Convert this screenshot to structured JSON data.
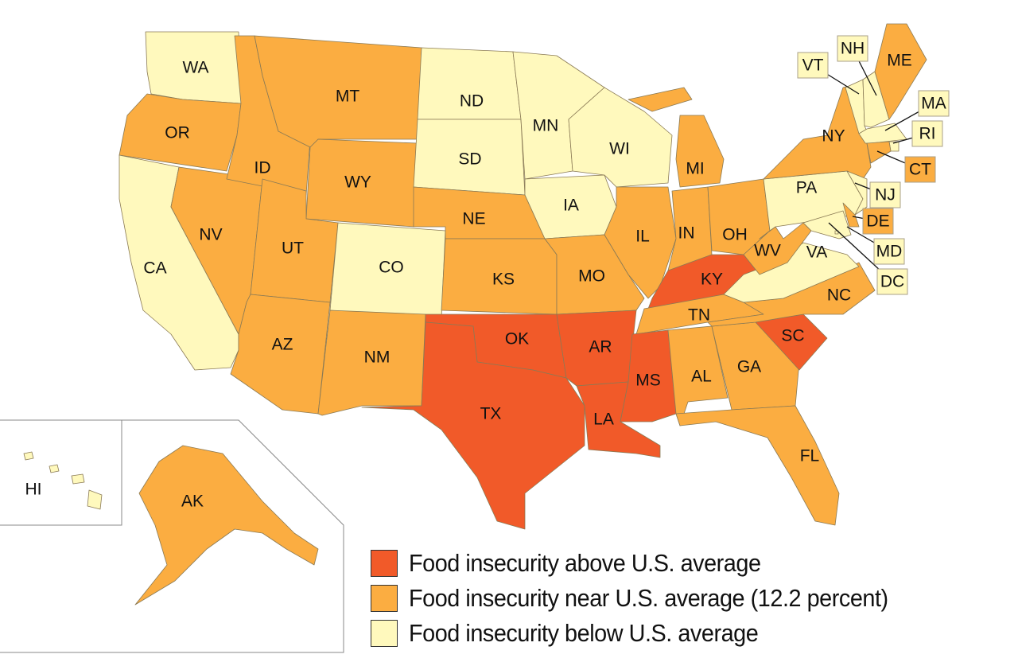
{
  "colors": {
    "above": "#F15A29",
    "near": "#FBAD41",
    "below": "#FFF9BD"
  },
  "legend": [
    {
      "category": "above",
      "label": "Food insecurity above U.S. average"
    },
    {
      "category": "near",
      "label": "Food insecurity near U.S. average (12.2 percent)"
    },
    {
      "category": "below",
      "label": "Food insecurity below U.S. average"
    }
  ],
  "states": [
    {
      "code": "WA",
      "category": "below"
    },
    {
      "code": "OR",
      "category": "near"
    },
    {
      "code": "CA",
      "category": "below"
    },
    {
      "code": "NV",
      "category": "near"
    },
    {
      "code": "ID",
      "category": "near"
    },
    {
      "code": "MT",
      "category": "near"
    },
    {
      "code": "WY",
      "category": "near"
    },
    {
      "code": "UT",
      "category": "near"
    },
    {
      "code": "AZ",
      "category": "near"
    },
    {
      "code": "CO",
      "category": "below"
    },
    {
      "code": "NM",
      "category": "near"
    },
    {
      "code": "ND",
      "category": "below"
    },
    {
      "code": "SD",
      "category": "below"
    },
    {
      "code": "NE",
      "category": "near"
    },
    {
      "code": "KS",
      "category": "near"
    },
    {
      "code": "OK",
      "category": "above"
    },
    {
      "code": "TX",
      "category": "above"
    },
    {
      "code": "MN",
      "category": "below"
    },
    {
      "code": "IA",
      "category": "below"
    },
    {
      "code": "MO",
      "category": "near"
    },
    {
      "code": "AR",
      "category": "above"
    },
    {
      "code": "LA",
      "category": "above"
    },
    {
      "code": "WI",
      "category": "below"
    },
    {
      "code": "IL",
      "category": "near"
    },
    {
      "code": "MI",
      "category": "near"
    },
    {
      "code": "IN",
      "category": "near"
    },
    {
      "code": "OH",
      "category": "near"
    },
    {
      "code": "KY",
      "category": "above"
    },
    {
      "code": "TN",
      "category": "near"
    },
    {
      "code": "MS",
      "category": "above"
    },
    {
      "code": "AL",
      "category": "near"
    },
    {
      "code": "GA",
      "category": "near"
    },
    {
      "code": "FL",
      "category": "near"
    },
    {
      "code": "SC",
      "category": "above"
    },
    {
      "code": "NC",
      "category": "near"
    },
    {
      "code": "VA",
      "category": "below"
    },
    {
      "code": "WV",
      "category": "near"
    },
    {
      "code": "PA",
      "category": "below"
    },
    {
      "code": "NY",
      "category": "near"
    },
    {
      "code": "VT",
      "category": "below"
    },
    {
      "code": "NH",
      "category": "below"
    },
    {
      "code": "ME",
      "category": "near"
    },
    {
      "code": "MA",
      "category": "below"
    },
    {
      "code": "RI",
      "category": "below"
    },
    {
      "code": "CT",
      "category": "near"
    },
    {
      "code": "NJ",
      "category": "below"
    },
    {
      "code": "DE",
      "category": "near"
    },
    {
      "code": "MD",
      "category": "below"
    },
    {
      "code": "DC",
      "category": "below"
    },
    {
      "code": "AK",
      "category": "near"
    },
    {
      "code": "HI",
      "category": "below"
    }
  ]
}
